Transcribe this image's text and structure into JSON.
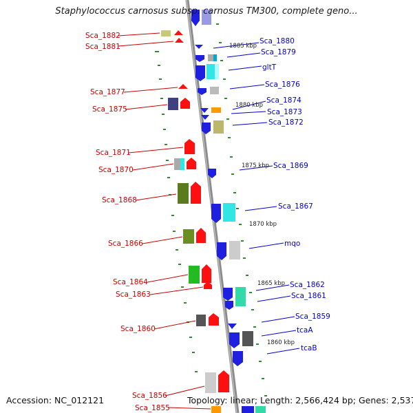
{
  "title": "Staphylococcus carnosus subsp. carnosus TM300, complete geno...",
  "footer": {
    "accession": "Accession: NC_012121",
    "summary": "Topology: linear; Length: 2,566,424 bp; Genes: 2,537"
  },
  "colors": {
    "reverse_label": "#cc0000",
    "forward_label": "#0000cc",
    "backbone": "#8c8c8c",
    "tick": "#2e8b2e"
  },
  "kbp_markers": [
    {
      "label": "1885 kbp"
    },
    {
      "label": "1880 kbp"
    },
    {
      "label": "1875 kbp"
    },
    {
      "label": "1870 kbp"
    },
    {
      "label": "1865 kbp"
    },
    {
      "label": "1860 kbp"
    }
  ],
  "genes_reverse": [
    {
      "name": "Sca_1882"
    },
    {
      "name": "Sca_1881"
    },
    {
      "name": "Sca_1877"
    },
    {
      "name": "Sca_1875"
    },
    {
      "name": "Sca_1871"
    },
    {
      "name": "Sca_1870"
    },
    {
      "name": "Sca_1868"
    },
    {
      "name": "Sca_1866"
    },
    {
      "name": "Sca_1864"
    },
    {
      "name": "Sca_1863"
    },
    {
      "name": "Sca_1860"
    },
    {
      "name": "Sca_1856"
    },
    {
      "name": "Sca_1855"
    }
  ],
  "genes_forward": [
    {
      "name": "Sca_1880"
    },
    {
      "name": "Sca_1879"
    },
    {
      "name": "gltT"
    },
    {
      "name": "Sca_1876"
    },
    {
      "name": "Sca_1874"
    },
    {
      "name": "Sca_1873"
    },
    {
      "name": "Sca_1872"
    },
    {
      "name": "Sca_1869"
    },
    {
      "name": "Sca_1867"
    },
    {
      "name": "mqo"
    },
    {
      "name": "Sca_1862"
    },
    {
      "name": "Sca_1861"
    },
    {
      "name": "Sca_1859"
    },
    {
      "name": "tcaA"
    },
    {
      "name": "tcaB"
    }
  ]
}
